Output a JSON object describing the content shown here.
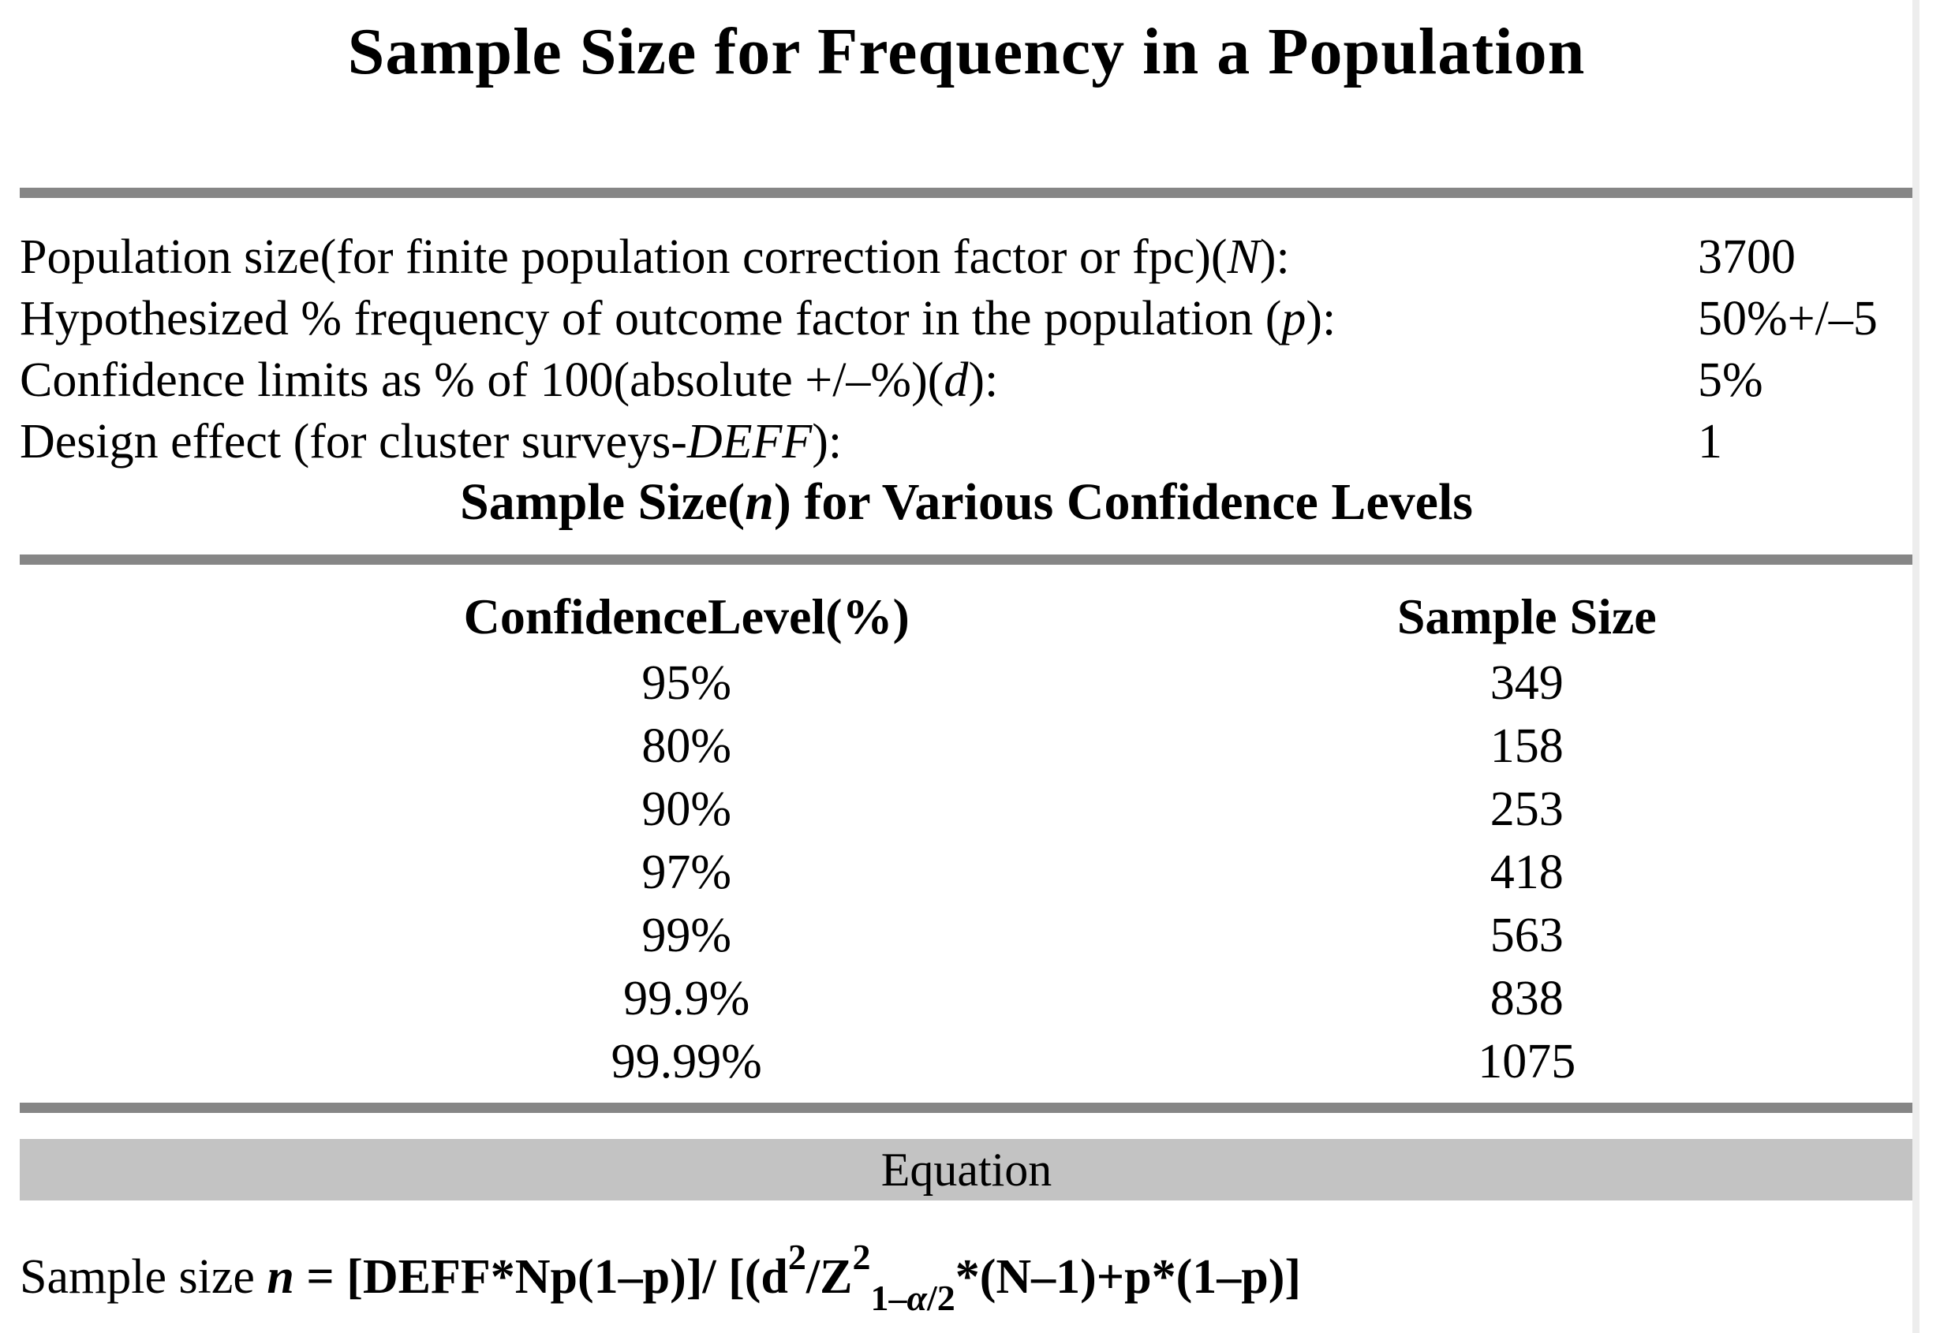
{
  "page": {
    "title": "Sample Size for Frequency in a Population"
  },
  "parameters": [
    {
      "pre": "Population size(for finite population correction factor or fpc)(",
      "var": "N",
      "post": "):",
      "value": "3700"
    },
    {
      "pre": "Hypothesized % frequency of outcome factor in the population (",
      "var": "p",
      "post": "):",
      "value": "50%+/–5"
    },
    {
      "pre": "Confidence limits as % of 100(absolute +/–%)(",
      "var": "d",
      "post": "):",
      "value": "5%"
    },
    {
      "pre": "Design effect (for cluster surveys-",
      "var": "DEFF",
      "post": "):",
      "value": "1"
    }
  ],
  "subheading": {
    "pre": "Sample Size(",
    "var": "n",
    "post": ") for Various Confidence Levels"
  },
  "table": {
    "columns": [
      "ConfidenceLevel(%)",
      "Sample Size"
    ],
    "rows": [
      {
        "level": "95%",
        "n": "349"
      },
      {
        "level": "80%",
        "n": "158"
      },
      {
        "level": "90%",
        "n": "253"
      },
      {
        "level": "97%",
        "n": "418"
      },
      {
        "level": "99%",
        "n": "563"
      },
      {
        "level": "99.9%",
        "n": "838"
      },
      {
        "level": "99.99%",
        "n": "1075"
      }
    ]
  },
  "equation": {
    "band_label": "Equation",
    "prefix": "Sample size ",
    "var": "n",
    "equals": " = ",
    "part1": "[DEFF*Np(1–p)]/ [(d",
    "sup1": "2",
    "part2": "/Z",
    "sup2": "2",
    "sub_pre": "1–",
    "sub_alpha": "α",
    "sub_post": "/2",
    "part3": "*(N–1)+p*(1–p)]"
  },
  "colors": {
    "rule_gray": "#868686",
    "band_gray": "#c3c3c3",
    "edge_strip": "#ededed",
    "text": "#000000",
    "background": "#ffffff"
  }
}
